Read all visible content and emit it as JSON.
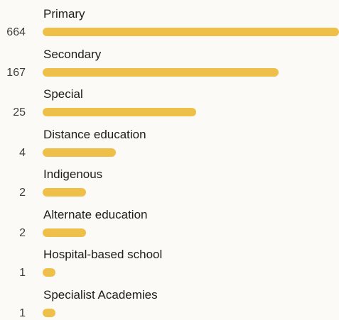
{
  "colors": {
    "bar": "#eec04a"
  },
  "chart_data": {
    "type": "bar",
    "orientation": "horizontal",
    "categories": [
      "Primary",
      "Secondary",
      "Special",
      "Distance education",
      "Indigenous",
      "Alternate education",
      "Hospital-based school",
      "Specialist Academies"
    ],
    "values": [
      664,
      167,
      25,
      4,
      2,
      2,
      1,
      1
    ],
    "value_labels": [
      "664",
      "167",
      "25",
      "4",
      "2",
      "2",
      "1",
      "1"
    ],
    "scale": "log"
  }
}
